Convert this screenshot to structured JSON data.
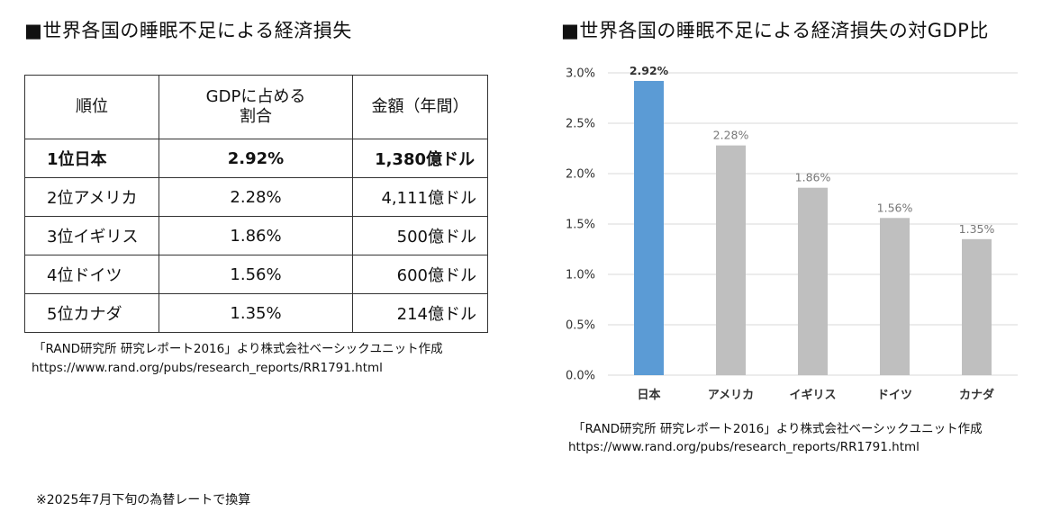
{
  "left": {
    "title": "■世界各国の睡眠不足による経済損失",
    "table": {
      "headers": [
        "順位",
        "GDPに占める\n割合",
        "金額（年間）"
      ],
      "rows": [
        {
          "rank": "1位日本",
          "share": "2.92%",
          "amount": "1,380億ドル"
        },
        {
          "rank": "2位アメリカ",
          "share": "2.28%",
          "amount": "4,111億ドル"
        },
        {
          "rank": "3位イギリス",
          "share": "1.86%",
          "amount": "500億ドル"
        },
        {
          "rank": "4位ドイツ",
          "share": "1.56%",
          "amount": "600億ドル"
        },
        {
          "rank": "5位カナダ",
          "share": "1.35%",
          "amount": "214億ドル"
        }
      ]
    },
    "source_line1": "「RAND研究所 研究レポート2016」より株式会社ベーシックユニット作成",
    "source_line2": "https://www.rand.org/pubs/research_reports/RR1791.html"
  },
  "right": {
    "title": "■世界各国の睡眠不足による経済損失の対GDP比",
    "source_line1": "「RAND研究所 研究レポート2016」より株式会社ベーシックユニット作成",
    "source_line2": "https://www.rand.org/pubs/research_reports/RR1791.html"
  },
  "footnote": "※2025年7月下旬の為替レートで換算",
  "chart_data": {
    "type": "bar",
    "categories": [
      "日本",
      "アメリカ",
      "イギリス",
      "ドイツ",
      "カナダ"
    ],
    "values": [
      2.92,
      2.28,
      1.86,
      1.56,
      1.35
    ],
    "data_labels": [
      "2.92%",
      "2.28%",
      "1.86%",
      "1.56%",
      "1.35%"
    ],
    "title": "",
    "xlabel": "",
    "ylabel": "",
    "ylim": [
      0,
      3.0
    ],
    "yticks": [
      0,
      0.5,
      1.0,
      1.5,
      2.0,
      2.5,
      3.0
    ],
    "ytick_labels": [
      "0.0%",
      "0.5%",
      "1.0%",
      "1.5%",
      "2.0%",
      "2.5%",
      "3.0%"
    ],
    "grid": true,
    "legend": "none",
    "highlight_color": "#5B9BD5",
    "bar_color": "#BFBFBF"
  }
}
